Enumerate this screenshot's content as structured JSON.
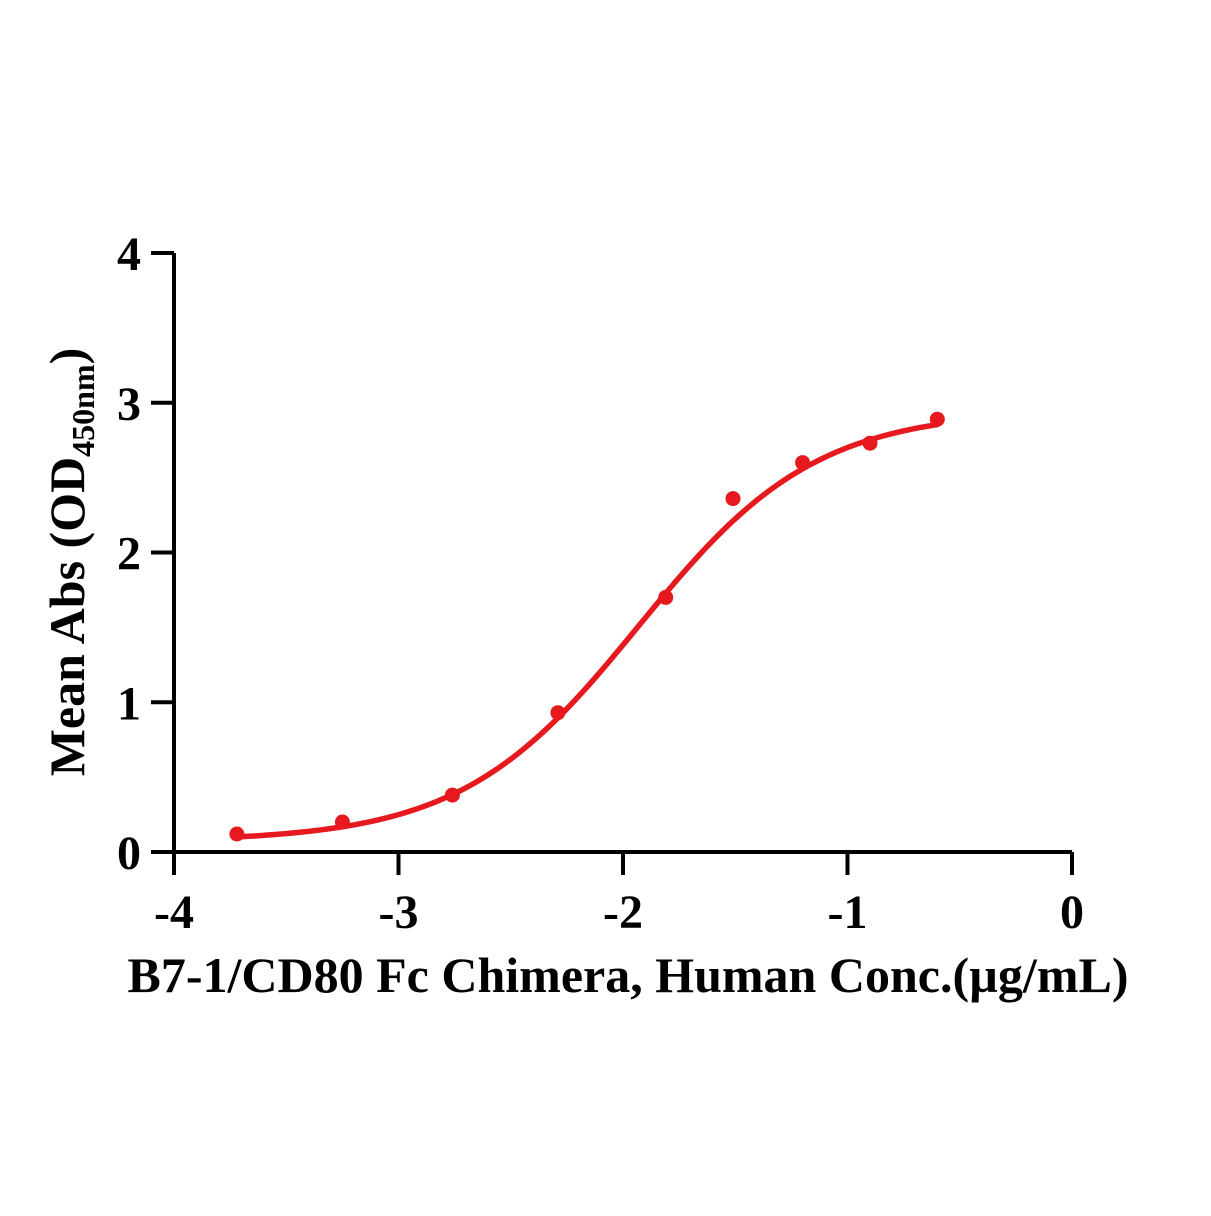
{
  "chart_data": {
    "type": "scatter-line",
    "title": "",
    "xlabel": "B7-1/CD80 Fc Chimera, Human Conc.(µg/mL)",
    "ylabel_main": "Mean Abs (OD",
    "ylabel_sub": "450nm",
    "ylabel_close": ")",
    "xlim": [
      -4,
      0
    ],
    "ylim": [
      0,
      4
    ],
    "x_ticks": [
      "-4",
      "-3",
      "-2",
      "-1",
      "0"
    ],
    "x_tick_values": [
      -4,
      -3,
      -2,
      -1,
      0
    ],
    "y_ticks": [
      "0",
      "1",
      "2",
      "3",
      "4"
    ],
    "y_tick_values": [
      0,
      1,
      2,
      3,
      4
    ],
    "grid": false,
    "legend": "none",
    "x": [
      -3.72,
      -3.25,
      -2.76,
      -2.29,
      -1.81,
      -1.51,
      -1.2,
      -0.9,
      -0.6
    ],
    "y": [
      0.12,
      0.2,
      0.38,
      0.93,
      1.7,
      2.36,
      2.6,
      2.73,
      2.89
    ],
    "fit_curve": {
      "model": "4PL",
      "bottom": 0.07,
      "top": 2.95,
      "logEC50": -1.93,
      "hillslope": 1.1,
      "x_start": -3.72,
      "x_end": -0.6
    },
    "accent_color": "#e6191e",
    "axis_color": "#000000"
  }
}
